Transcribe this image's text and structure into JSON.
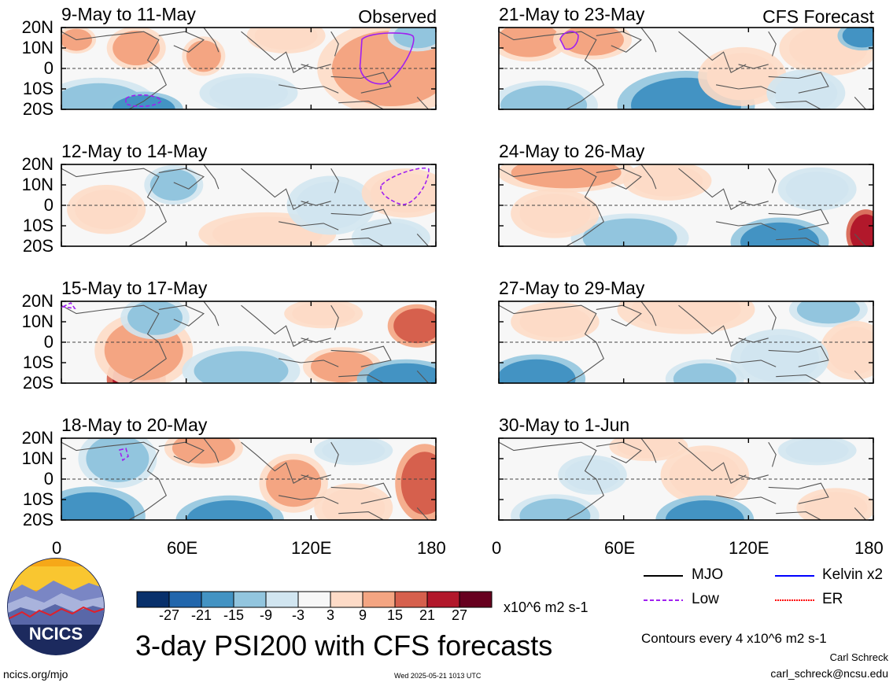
{
  "labels": {
    "observed": "Observed",
    "forecast": "CFS Forecast"
  },
  "panels": [
    {
      "title": "9-May to 11-May"
    },
    {
      "title": "12-May to 14-May"
    },
    {
      "title": "15-May to 17-May"
    },
    {
      "title": "18-May to 20-May"
    },
    {
      "title": "21-May to 23-May"
    },
    {
      "title": "24-May to 26-May"
    },
    {
      "title": "27-May to 29-May"
    },
    {
      "title": "30-May to 1-Jun"
    }
  ],
  "axes": {
    "y_ticks": [
      "20N",
      "10N",
      "0",
      "10S",
      "20S"
    ],
    "x_ticks": [
      "0",
      "60E",
      "120E",
      "180"
    ]
  },
  "colorbar": {
    "colors": [
      "#08306b",
      "#2166ac",
      "#4393c3",
      "#92c5de",
      "#d1e5f0",
      "#f7f7f7",
      "#fddbc7",
      "#f4a582",
      "#d6604d",
      "#b2182b",
      "#67001f"
    ],
    "tick_labels": [
      "-27",
      "-21",
      "-15",
      "-9",
      "-3",
      "3",
      "9",
      "15",
      "21",
      "27"
    ],
    "units": "x10^6 m2 s-1"
  },
  "legend": {
    "items": [
      {
        "label": "MJO",
        "color": "#000000"
      },
      {
        "label": "Kelvin x2",
        "color": "#0000ff"
      },
      {
        "label": "Low",
        "color": "#a020f0"
      },
      {
        "label": "ER",
        "color": "#ff0000"
      }
    ],
    "contours_note": "Contours every 4 x10^6 m2 s-1",
    "author": "Carl Schreck",
    "email": "carl_schreck@ncsu.edu"
  },
  "footer": {
    "main_title": "3-day PSI200 with CFS forecasts",
    "url": "ncics.org/mjo",
    "timestamp": "Wed 2025-05-21 1013 UTC",
    "logo_text": "NCICS"
  },
  "chart_data": [
    {
      "type": "heatmap",
      "title": "9-May to 11-May",
      "label": "Observed",
      "x_range": [
        "0",
        "180"
      ],
      "y_range": [
        "20S",
        "20N"
      ]
    },
    {
      "type": "heatmap",
      "title": "12-May to 14-May",
      "label": "Observed",
      "x_range": [
        "0",
        "180"
      ],
      "y_range": [
        "20S",
        "20N"
      ]
    },
    {
      "type": "heatmap",
      "title": "15-May to 17-May",
      "label": "Observed",
      "x_range": [
        "0",
        "180"
      ],
      "y_range": [
        "20S",
        "20N"
      ]
    },
    {
      "type": "heatmap",
      "title": "18-May to 20-May",
      "label": "Observed",
      "x_range": [
        "0",
        "180"
      ],
      "y_range": [
        "20S",
        "20N"
      ]
    },
    {
      "type": "heatmap",
      "title": "21-May to 23-May",
      "label": "CFS Forecast",
      "x_range": [
        "0",
        "180"
      ],
      "y_range": [
        "20S",
        "20N"
      ]
    },
    {
      "type": "heatmap",
      "title": "24-May to 26-May",
      "label": "CFS Forecast",
      "x_range": [
        "0",
        "180"
      ],
      "y_range": [
        "20S",
        "20N"
      ]
    },
    {
      "type": "heatmap",
      "title": "27-May to 29-May",
      "label": "CFS Forecast",
      "x_range": [
        "0",
        "180"
      ],
      "y_range": [
        "20S",
        "20N"
      ]
    },
    {
      "type": "heatmap",
      "title": "30-May to 1-Jun",
      "label": "CFS Forecast",
      "x_range": [
        "0",
        "180"
      ],
      "y_range": [
        "20S",
        "20N"
      ]
    }
  ]
}
